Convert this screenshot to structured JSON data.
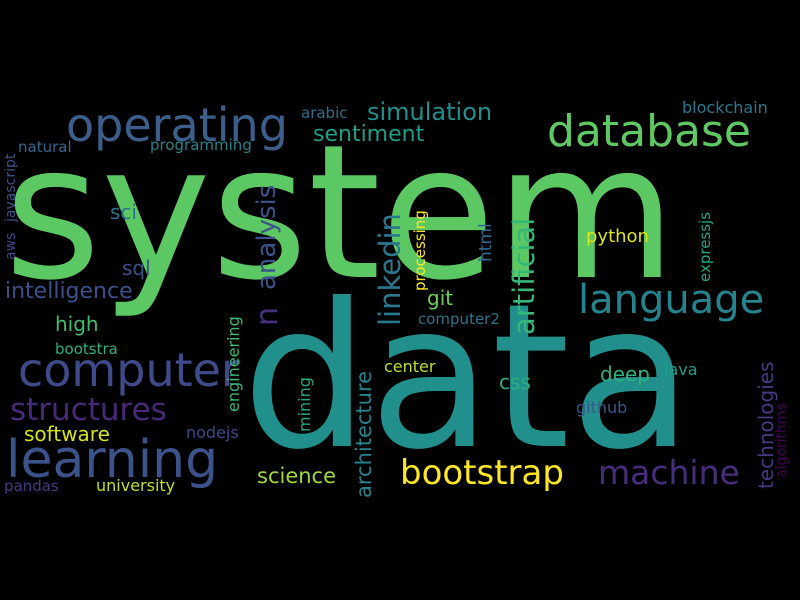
{
  "words": [
    {
      "text": "system",
      "color": "#5cc863",
      "orientation": "horizontal"
    },
    {
      "text": "data",
      "color": "#21908d",
      "orientation": "horizontal"
    },
    {
      "text": "learning",
      "color": "#3b528b",
      "orientation": "horizontal"
    },
    {
      "text": "computer",
      "color": "#3e4a89",
      "orientation": "horizontal"
    },
    {
      "text": "operating",
      "color": "#3b5f8a",
      "orientation": "horizontal"
    },
    {
      "text": "database",
      "color": "#5ec962",
      "orientation": "horizontal"
    },
    {
      "text": "language",
      "color": "#25838e",
      "orientation": "horizontal"
    },
    {
      "text": "bootstrap",
      "color": "#fde725",
      "orientation": "horizontal"
    },
    {
      "text": "machine",
      "color": "#472d7b",
      "orientation": "horizontal"
    },
    {
      "text": "structures",
      "color": "#482979",
      "orientation": "horizontal"
    },
    {
      "text": "artificial",
      "color": "#35b779",
      "orientation": "vertical"
    },
    {
      "text": "linkedin",
      "color": "#2a788e",
      "orientation": "vertical"
    },
    {
      "text": "simulation",
      "color": "#218f8d",
      "orientation": "horizontal"
    },
    {
      "text": "sentiment",
      "color": "#1f9e89",
      "orientation": "horizontal"
    },
    {
      "text": "intelligence",
      "color": "#3b518b",
      "orientation": "horizontal"
    },
    {
      "text": "analysis",
      "color": "#3b528b",
      "orientation": "vertical"
    },
    {
      "text": "n",
      "color": "#46327e",
      "orientation": "vertical"
    },
    {
      "text": "software",
      "color": "#d8e219",
      "orientation": "horizontal"
    },
    {
      "text": "science",
      "color": "#9fda3a",
      "orientation": "horizontal"
    },
    {
      "text": "technologies",
      "color": "#443983",
      "orientation": "vertical"
    },
    {
      "text": "architecture",
      "color": "#26828e",
      "orientation": "vertical"
    },
    {
      "text": "high",
      "color": "#3fbc73",
      "orientation": "horizontal"
    },
    {
      "text": "deep",
      "color": "#2db27d",
      "orientation": "horizontal"
    },
    {
      "text": "css",
      "color": "#29af7f",
      "orientation": "horizontal"
    },
    {
      "text": "git",
      "color": "#6ccd5a",
      "orientation": "horizontal"
    },
    {
      "text": "sql",
      "color": "#3b528b",
      "orientation": "horizontal"
    },
    {
      "text": "sci",
      "color": "#2c728e",
      "orientation": "horizontal"
    },
    {
      "text": "html",
      "color": "#31688e",
      "orientation": "vertical"
    },
    {
      "text": "python",
      "color": "#dde318",
      "orientation": "horizontal"
    },
    {
      "text": "github",
      "color": "#38598c",
      "orientation": "horizontal"
    },
    {
      "text": "java",
      "color": "#1f9f88",
      "orientation": "horizontal"
    },
    {
      "text": "center",
      "color": "#bddf26",
      "orientation": "horizontal"
    },
    {
      "text": "nodejs",
      "color": "#3e4a89",
      "orientation": "horizontal"
    },
    {
      "text": "university",
      "color": "#c2df23",
      "orientation": "horizontal"
    },
    {
      "text": "pandas",
      "color": "#443b84",
      "orientation": "horizontal"
    },
    {
      "text": "bootstra",
      "color": "#2ab07f",
      "orientation": "horizontal"
    },
    {
      "text": "engineering",
      "color": "#3aba76",
      "orientation": "vertical"
    },
    {
      "text": "mining",
      "color": "#22a884",
      "orientation": "vertical"
    },
    {
      "text": "processing",
      "color": "#fde725",
      "orientation": "vertical"
    },
    {
      "text": "computer2",
      "color": "#2c738e",
      "orientation": "horizontal"
    },
    {
      "text": "expressjs",
      "color": "#21a685",
      "orientation": "vertical"
    },
    {
      "text": "algorithms",
      "color": "#440154",
      "orientation": "vertical"
    },
    {
      "text": "blockchain",
      "color": "#2a788e",
      "orientation": "horizontal"
    },
    {
      "text": "arabic",
      "color": "#2e6f8e",
      "orientation": "horizontal"
    },
    {
      "text": "programming",
      "color": "#26828e",
      "orientation": "horizontal"
    },
    {
      "text": "natural",
      "color": "#31688e",
      "orientation": "horizontal"
    },
    {
      "text": "javascript",
      "color": "#3a538b",
      "orientation": "vertical"
    },
    {
      "text": "aws",
      "color": "#414487",
      "orientation": "vertical"
    }
  ]
}
